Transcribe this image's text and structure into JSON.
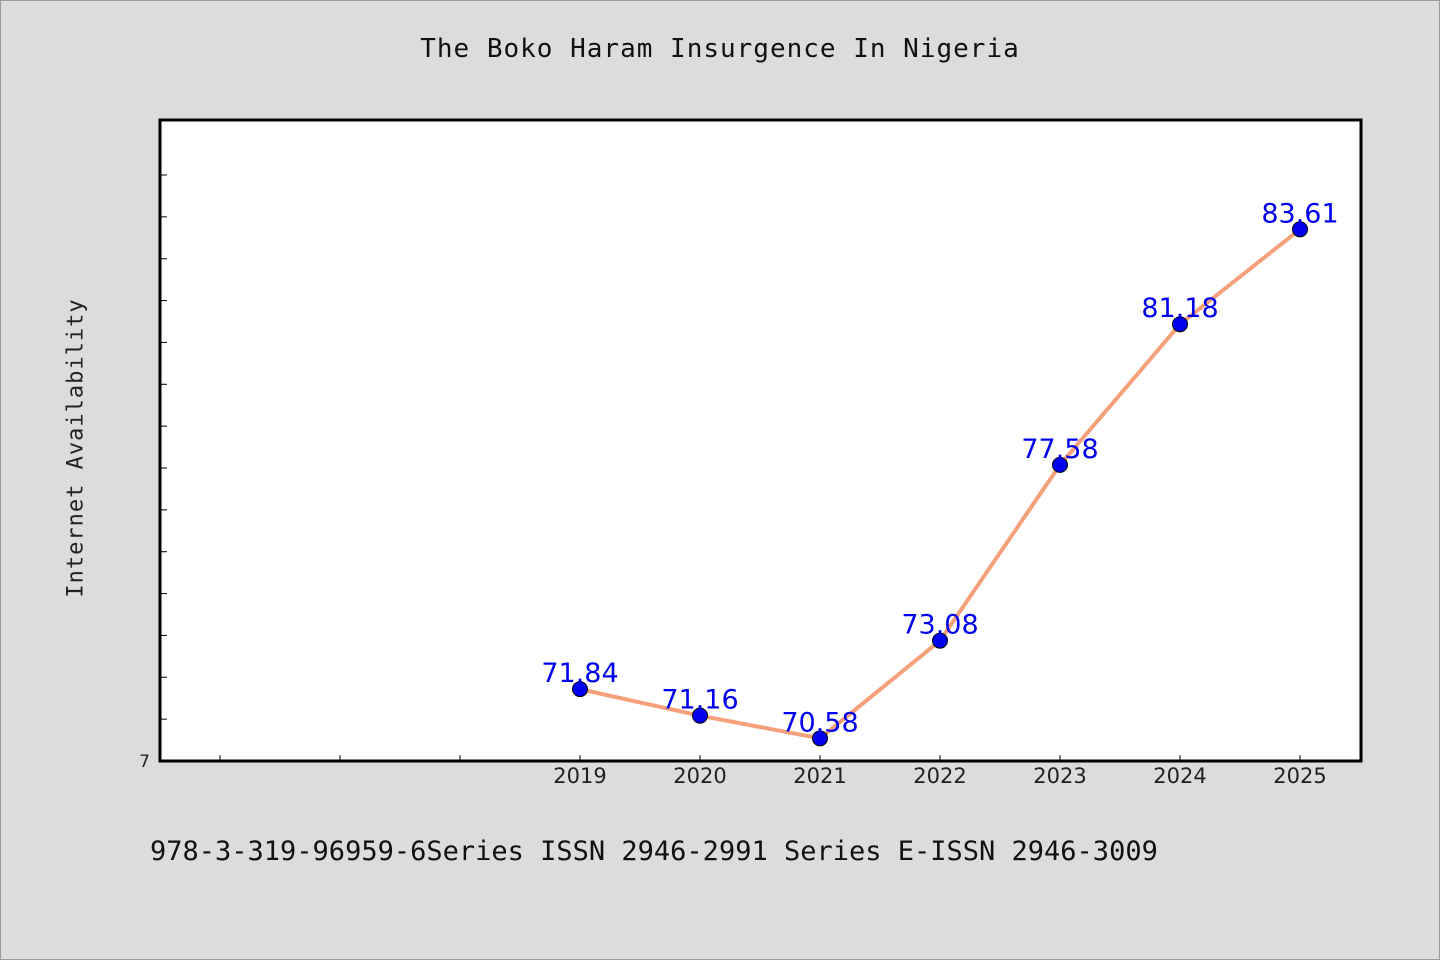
{
  "colors": {
    "background": "#dcdcdc",
    "plot_area": "#ffffff",
    "line": "#f4a07a",
    "marker": "#0000ee",
    "data_label": "#0000ee"
  },
  "chart_data": {
    "type": "line",
    "title": "The Boko Haram Insurgence In Nigeria",
    "xlabel": "",
    "ylabel": "Internet Availability",
    "categories": [
      "2019",
      "2020",
      "2021",
      "2022",
      "2023",
      "2024",
      "2025"
    ],
    "values": [
      71.84,
      71.16,
      70.58,
      73.08,
      77.58,
      81.18,
      83.61
    ],
    "value_labels": [
      "71.84",
      "71.16",
      "70.58",
      "73.08",
      "77.58",
      "81.18",
      "83.61"
    ],
    "ylim": [
      70,
      85
    ],
    "y_tick_labels": [
      "7"
    ],
    "grid": false,
    "legend": "none"
  },
  "footer": {
    "text": "978-3-319-96959-6Series ISSN 2946-2991 Series E-ISSN 2946-3009"
  }
}
